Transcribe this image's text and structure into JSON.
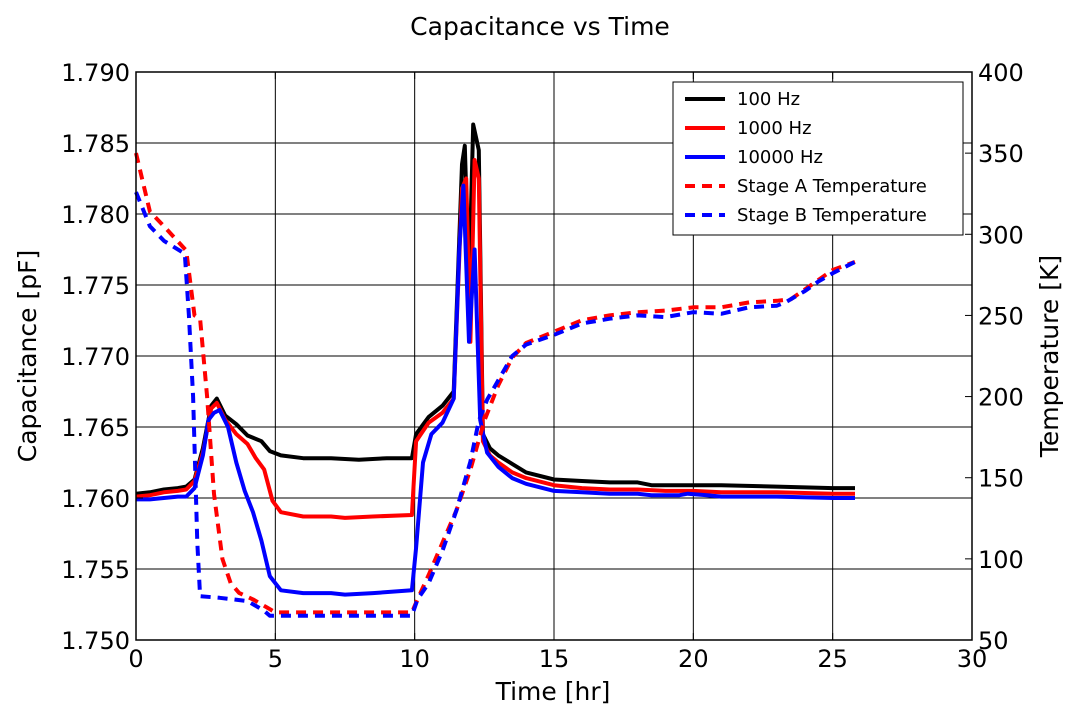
{
  "chart_data": {
    "type": "line",
    "title": "Capacitance vs Time",
    "xlabel": "Time [hr]",
    "ylabel": "Capacitance [pF]",
    "y2label": "Temperature [K]",
    "xlim": [
      0,
      30
    ],
    "ylim": [
      1.75,
      1.79
    ],
    "y2lim": [
      50,
      400
    ],
    "xticks": [
      "0",
      "5",
      "10",
      "15",
      "20",
      "25",
      "30"
    ],
    "yticks": [
      "1.750",
      "1.755",
      "1.760",
      "1.765",
      "1.770",
      "1.775",
      "1.780",
      "1.785",
      "1.790"
    ],
    "y2ticks": [
      "50",
      "100",
      "150",
      "200",
      "250",
      "300",
      "350",
      "400"
    ],
    "grid": true,
    "legend_position": "top-right",
    "series": [
      {
        "name": "100 Hz",
        "axis": "left",
        "color": "#000000",
        "style": "solid",
        "points": [
          [
            0,
            1.7603
          ],
          [
            0.5,
            1.7604
          ],
          [
            1,
            1.7606
          ],
          [
            1.5,
            1.7607
          ],
          [
            1.8,
            1.7608
          ],
          [
            2.1,
            1.7613
          ],
          [
            2.4,
            1.7635
          ],
          [
            2.7,
            1.7665
          ],
          [
            2.9,
            1.767
          ],
          [
            3.2,
            1.7658
          ],
          [
            3.6,
            1.7652
          ],
          [
            4,
            1.7644
          ],
          [
            4.5,
            1.764
          ],
          [
            4.8,
            1.7633
          ],
          [
            5.2,
            1.763
          ],
          [
            6,
            1.7628
          ],
          [
            7,
            1.7628
          ],
          [
            8,
            1.7627
          ],
          [
            9,
            1.7628
          ],
          [
            9.9,
            1.7628
          ],
          [
            10.05,
            1.7645
          ],
          [
            10.5,
            1.7657
          ],
          [
            11,
            1.7665
          ],
          [
            11.4,
            1.7675
          ],
          [
            11.7,
            1.7835
          ],
          [
            11.8,
            1.7848
          ],
          [
            11.95,
            1.775
          ],
          [
            12.1,
            1.7863
          ],
          [
            12.3,
            1.7845
          ],
          [
            12.45,
            1.7645
          ],
          [
            12.7,
            1.7635
          ],
          [
            13,
            1.763
          ],
          [
            13.5,
            1.7624
          ],
          [
            14,
            1.7618
          ],
          [
            15,
            1.7613
          ],
          [
            16,
            1.7612
          ],
          [
            17,
            1.7611
          ],
          [
            18,
            1.7611
          ],
          [
            18.5,
            1.7609
          ],
          [
            20,
            1.7609
          ],
          [
            21,
            1.7609
          ],
          [
            23,
            1.7608
          ],
          [
            25,
            1.7607
          ],
          [
            25.8,
            1.7607
          ]
        ]
      },
      {
        "name": "1000 Hz",
        "axis": "left",
        "color": "#ff0000",
        "style": "solid",
        "points": [
          [
            0,
            1.7601
          ],
          [
            0.5,
            1.7602
          ],
          [
            1,
            1.7604
          ],
          [
            1.5,
            1.7605
          ],
          [
            1.8,
            1.7606
          ],
          [
            2.1,
            1.7612
          ],
          [
            2.4,
            1.7632
          ],
          [
            2.7,
            1.7663
          ],
          [
            2.9,
            1.7667
          ],
          [
            3.2,
            1.7655
          ],
          [
            3.6,
            1.7645
          ],
          [
            4,
            1.7638
          ],
          [
            4.3,
            1.7628
          ],
          [
            4.6,
            1.762
          ],
          [
            4.9,
            1.7598
          ],
          [
            5.2,
            1.759
          ],
          [
            6,
            1.7587
          ],
          [
            7,
            1.7587
          ],
          [
            7.5,
            1.7586
          ],
          [
            8.5,
            1.7587
          ],
          [
            9.9,
            1.7588
          ],
          [
            10.05,
            1.764
          ],
          [
            10.5,
            1.7653
          ],
          [
            11,
            1.766
          ],
          [
            11.4,
            1.767
          ],
          [
            11.7,
            1.7818
          ],
          [
            11.85,
            1.7825
          ],
          [
            12.0,
            1.771
          ],
          [
            12.15,
            1.7838
          ],
          [
            12.3,
            1.7825
          ],
          [
            12.45,
            1.764
          ],
          [
            12.7,
            1.763
          ],
          [
            13,
            1.7625
          ],
          [
            13.5,
            1.7618
          ],
          [
            14,
            1.7614
          ],
          [
            15,
            1.7609
          ],
          [
            16,
            1.7607
          ],
          [
            17,
            1.7606
          ],
          [
            18,
            1.7606
          ],
          [
            19,
            1.7605
          ],
          [
            20,
            1.7605
          ],
          [
            21,
            1.7604
          ],
          [
            23,
            1.7604
          ],
          [
            25,
            1.7603
          ],
          [
            25.8,
            1.7603
          ]
        ]
      },
      {
        "name": "10000 Hz",
        "axis": "left",
        "color": "#0000ff",
        "style": "solid",
        "points": [
          [
            0,
            1.7599
          ],
          [
            0.5,
            1.7599
          ],
          [
            1,
            1.76
          ],
          [
            1.5,
            1.7601
          ],
          [
            1.8,
            1.7601
          ],
          [
            2.1,
            1.7607
          ],
          [
            2.4,
            1.763
          ],
          [
            2.6,
            1.7655
          ],
          [
            2.8,
            1.766
          ],
          [
            3.0,
            1.7662
          ],
          [
            3.3,
            1.765
          ],
          [
            3.6,
            1.7625
          ],
          [
            3.9,
            1.7605
          ],
          [
            4.2,
            1.759
          ],
          [
            4.5,
            1.757
          ],
          [
            4.8,
            1.7545
          ],
          [
            5.2,
            1.7535
          ],
          [
            6,
            1.7533
          ],
          [
            7,
            1.7533
          ],
          [
            7.5,
            1.7532
          ],
          [
            8.5,
            1.7533
          ],
          [
            9.9,
            1.7535
          ],
          [
            10.05,
            1.7565
          ],
          [
            10.3,
            1.7625
          ],
          [
            10.6,
            1.7645
          ],
          [
            11,
            1.7653
          ],
          [
            11.4,
            1.767
          ],
          [
            11.6,
            1.7775
          ],
          [
            11.75,
            1.782
          ],
          [
            11.95,
            1.771
          ],
          [
            12.15,
            1.7775
          ],
          [
            12.35,
            1.7655
          ],
          [
            12.6,
            1.7632
          ],
          [
            13,
            1.7622
          ],
          [
            13.5,
            1.7614
          ],
          [
            14,
            1.761
          ],
          [
            15,
            1.7605
          ],
          [
            16,
            1.7604
          ],
          [
            17,
            1.7603
          ],
          [
            18,
            1.7603
          ],
          [
            18.5,
            1.7602
          ],
          [
            19.5,
            1.7602
          ],
          [
            19.8,
            1.7603
          ],
          [
            20.5,
            1.7602
          ],
          [
            21,
            1.7601
          ],
          [
            23,
            1.7601
          ],
          [
            25,
            1.76
          ],
          [
            25.8,
            1.76
          ]
        ]
      },
      {
        "name": "Stage A Temperature",
        "axis": "right",
        "color": "#ff0000",
        "style": "dashed",
        "points": [
          [
            0,
            350
          ],
          [
            0.5,
            314
          ],
          [
            1,
            305
          ],
          [
            1.8,
            290
          ],
          [
            2.1,
            250
          ],
          [
            2.3,
            248
          ],
          [
            2.55,
            200
          ],
          [
            2.8,
            140
          ],
          [
            3.1,
            100
          ],
          [
            3.4,
            85
          ],
          [
            3.7,
            79
          ],
          [
            4.2,
            75
          ],
          [
            4.7,
            70
          ],
          [
            5,
            67
          ],
          [
            6,
            67
          ],
          [
            7,
            67
          ],
          [
            8,
            67
          ],
          [
            9,
            67
          ],
          [
            9.9,
            67
          ],
          [
            10.1,
            75
          ],
          [
            10.5,
            90
          ],
          [
            11,
            110
          ],
          [
            11.5,
            130
          ],
          [
            12,
            155
          ],
          [
            12.5,
            185
          ],
          [
            13,
            207
          ],
          [
            13.5,
            224
          ],
          [
            14,
            233
          ],
          [
            15,
            240
          ],
          [
            16,
            247
          ],
          [
            17,
            250
          ],
          [
            18,
            252
          ],
          [
            19,
            253
          ],
          [
            20,
            255
          ],
          [
            21,
            255
          ],
          [
            22,
            258
          ],
          [
            23,
            259
          ],
          [
            23.5,
            260
          ],
          [
            24,
            266
          ],
          [
            24.5,
            272
          ],
          [
            25,
            278
          ],
          [
            25.8,
            283
          ]
        ]
      },
      {
        "name": "Stage B Temperature",
        "axis": "right",
        "color": "#0000ff",
        "style": "dashed",
        "points": [
          [
            0,
            326
          ],
          [
            0.5,
            305
          ],
          [
            1,
            296
          ],
          [
            1.75,
            288
          ],
          [
            1.9,
            250
          ],
          [
            2.05,
            200
          ],
          [
            2.2,
            110
          ],
          [
            2.3,
            77
          ],
          [
            3,
            76
          ],
          [
            3.5,
            75
          ],
          [
            4,
            74
          ],
          [
            4.4,
            70
          ],
          [
            4.6,
            68
          ],
          [
            4.8,
            65
          ],
          [
            5,
            65
          ],
          [
            6,
            65
          ],
          [
            7,
            65
          ],
          [
            8,
            65
          ],
          [
            9,
            65
          ],
          [
            9.9,
            65
          ],
          [
            10.1,
            75
          ],
          [
            10.5,
            85
          ],
          [
            11,
            105
          ],
          [
            11.5,
            130
          ],
          [
            12,
            160
          ],
          [
            12.3,
            185
          ],
          [
            12.6,
            198
          ],
          [
            13,
            210
          ],
          [
            13.5,
            225
          ],
          [
            14,
            232
          ],
          [
            15,
            238
          ],
          [
            16,
            245
          ],
          [
            17,
            248
          ],
          [
            18,
            250
          ],
          [
            19,
            249
          ],
          [
            20,
            252
          ],
          [
            21,
            251
          ],
          [
            22,
            255
          ],
          [
            23,
            256
          ],
          [
            23.3,
            258
          ],
          [
            24,
            265
          ],
          [
            24.5,
            271
          ],
          [
            25,
            276
          ],
          [
            25.8,
            283
          ]
        ]
      }
    ]
  }
}
